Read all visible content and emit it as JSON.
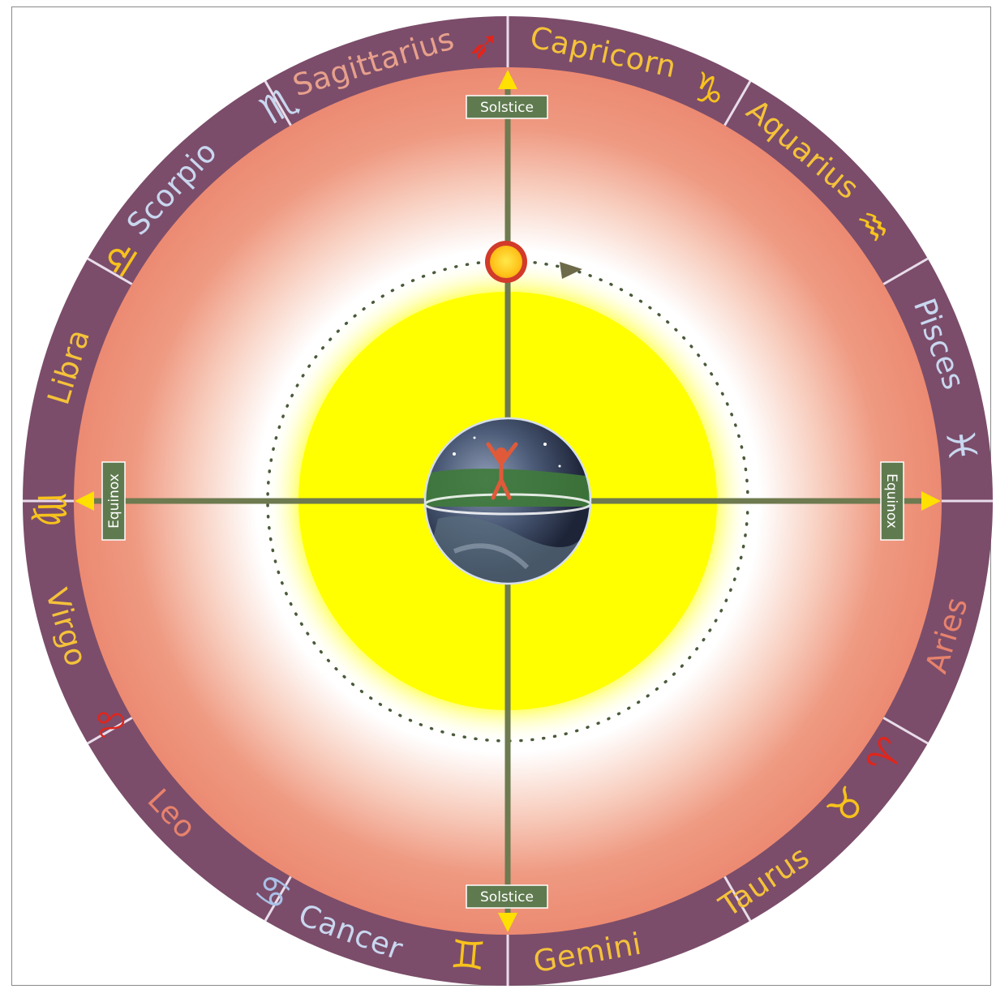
{
  "colors": {
    "ring": "#7b4d6a",
    "ring_divider": "#e9dcea",
    "sky_outer": "#ec8a72",
    "sky_inner": "#ffffff",
    "sun_disk": "#ffff00",
    "axis": "#6e7a4f",
    "marker_box": "#5f7a4f",
    "arrow": "#ffe000",
    "orbit_dots": "#4a5a3a",
    "sun_ring": "#d23a2a",
    "sun_core": "#ffd21a"
  },
  "signs": [
    {
      "name": "Capricorn",
      "glyph": "♑",
      "name_color": "#f5c23a",
      "glyph_color": "#f7c21c",
      "icon": "capricorn-icon"
    },
    {
      "name": "Aquarius",
      "glyph": "♒",
      "name_color": "#f5c23a",
      "glyph_color": "#f7c21c",
      "icon": "aquarius-icon"
    },
    {
      "name": "Pisces",
      "glyph": "♓",
      "name_color": "#c9d7f0",
      "glyph_color": "#c9d7f0",
      "icon": "pisces-icon"
    },
    {
      "name": "Aries",
      "glyph": "♈",
      "name_color": "#e8826c",
      "glyph_color": "#e0251c",
      "icon": "aries-icon"
    },
    {
      "name": "Taurus",
      "glyph": "♉",
      "name_color": "#f5c23a",
      "glyph_color": "#f7c21c",
      "icon": "taurus-icon"
    },
    {
      "name": "Gemini",
      "glyph": "♊",
      "name_color": "#f5c23a",
      "glyph_color": "#f7c21c",
      "icon": "gemini-icon"
    },
    {
      "name": "Cancer",
      "glyph": "♋",
      "name_color": "#c9d7f0",
      "glyph_color": "#a9c1e8",
      "icon": "cancer-icon"
    },
    {
      "name": "Leo",
      "glyph": "♌",
      "name_color": "#e8826c",
      "glyph_color": "#e0251c",
      "icon": "leo-icon"
    },
    {
      "name": "Virgo",
      "glyph": "♍",
      "name_color": "#f5c23a",
      "glyph_color": "#f7c21c",
      "icon": "virgo-icon"
    },
    {
      "name": "Libra",
      "glyph": "♎",
      "name_color": "#f5c23a",
      "glyph_color": "#f7c21c",
      "icon": "libra-icon"
    },
    {
      "name": "Scorpio",
      "glyph": "♏",
      "name_color": "#c9d7f0",
      "glyph_color": "#c9d7f0",
      "icon": "scorpio-icon"
    },
    {
      "name": "Sagittarius",
      "glyph": "➶",
      "name_color": "#e8a08c",
      "glyph_color": "#e0251c",
      "icon": "sagittarius-arrow-icon"
    }
  ],
  "markers": {
    "top": "Solstice",
    "bottom": "Solstice",
    "left": "Equinox",
    "right": "Equinox"
  }
}
